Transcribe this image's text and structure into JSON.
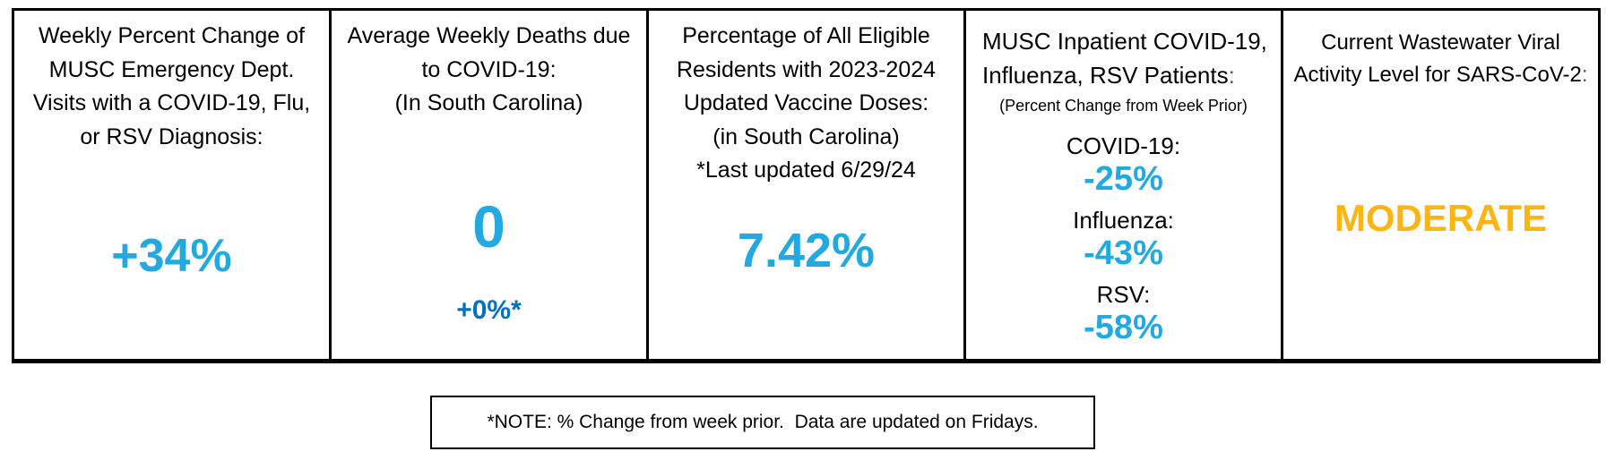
{
  "colors": {
    "value_sky_blue": "#23A9E1",
    "value_dark_blue": "#0070C0",
    "title_colon_blue": "#2E5FA8",
    "wastewater_gold": "#FDB515",
    "border_black": "#000000"
  },
  "panels": [
    {
      "id": "ed-visits",
      "title": "Weekly Percent Change of MUSC Emergency Dept. Visits with a COVID-19, Flu, or RSV Diagnosis:",
      "value": "+34%"
    },
    {
      "id": "weekly-deaths",
      "title": "Average Weekly Deaths due to COVID-19:",
      "subtitle": "(In South Carolina)",
      "value": "0",
      "secondary_value": "+0%*"
    },
    {
      "id": "vaccine-doses",
      "title": "Percentage of All Eligible Residents with 2023-2024 Updated Vaccine Doses:",
      "subtitle": "(in South Carolina)",
      "last_updated": "*Last updated 6/29/24",
      "value": "7.42%"
    },
    {
      "id": "inpatient",
      "title": "MUSC Inpatient COVID-19, Influenza, RSV Patients",
      "title_colon": ":",
      "subtitle": "(Percent Change from Week Prior)",
      "items": [
        {
          "label": "COVID-19:",
          "value": "-25%"
        },
        {
          "label": "Influenza:",
          "value": "-43%"
        },
        {
          "label": "RSV:",
          "value": "-58%"
        }
      ]
    },
    {
      "id": "wastewater",
      "title": "Current Wastewater Viral Activity Level for SARS-CoV-2",
      "title_colon": ":",
      "value": "MODERATE"
    }
  ],
  "footnote": "*NOTE: % Change from week prior.  Data are updated on Fridays."
}
